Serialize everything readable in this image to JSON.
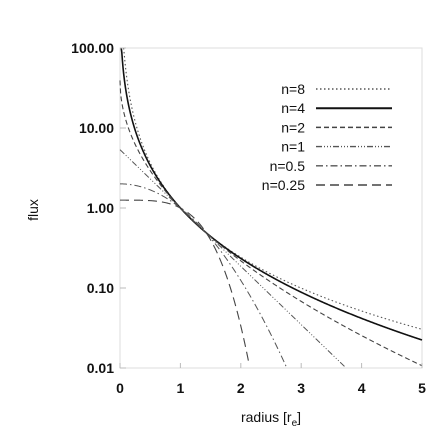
{
  "chart_data": {
    "type": "line",
    "title": "",
    "xlabel": "radius [r",
    "xlabel_sub": "e",
    "xlabel_close": "]",
    "ylabel": "flux",
    "xlim": [
      0,
      5
    ],
    "ylim": [
      0.01,
      100
    ],
    "yscale": "log",
    "xticks": [
      0,
      1,
      2,
      3,
      4,
      5
    ],
    "xtick_labels": [
      "0",
      "1",
      "2",
      "3",
      "4",
      "5"
    ],
    "yticks": [
      0.01,
      0.1,
      1,
      10,
      100
    ],
    "ytick_labels": [
      "0.01",
      "0.10",
      "1.00",
      "10.00",
      "100.00"
    ],
    "legend_position": "top-right",
    "series": [
      {
        "name": "n=8",
        "sersic_n": 8,
        "dash": "1.5,2.5",
        "width": 1.1,
        "color": "#555555"
      },
      {
        "name": "n=4",
        "sersic_n": 4,
        "dash": "",
        "width": 1.6,
        "color": "#111111"
      },
      {
        "name": "n=2",
        "sersic_n": 2,
        "dash": "5,3",
        "width": 1.1,
        "color": "#444444"
      },
      {
        "name": "n=1",
        "sersic_n": 1,
        "dash": "6,2,1,2,1,2,1,2",
        "width": 1.0,
        "color": "#555555"
      },
      {
        "name": "n=0.5",
        "sersic_n": 0.5,
        "dash": "7,3,1.5,3",
        "width": 1.0,
        "color": "#555555"
      },
      {
        "name": "n=0.25",
        "sersic_n": 0.25,
        "dash": "9,5",
        "width": 1.1,
        "color": "#444444"
      }
    ]
  }
}
